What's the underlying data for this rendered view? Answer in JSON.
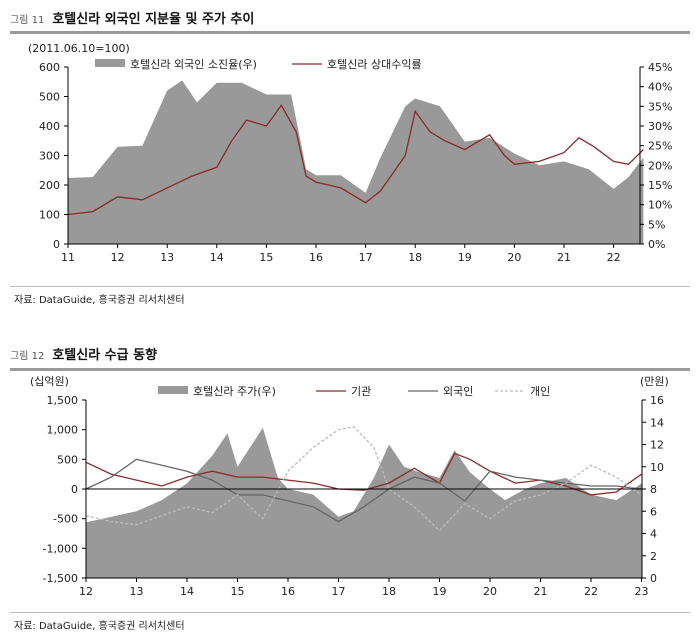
{
  "chart_data": [
    {
      "type": "area+line",
      "figure_no": "그림 11",
      "title": "호텔신라 외국인 지분율 및 주가 추이",
      "unit_left": "(2011.06.10=100)",
      "source": "자료: DataGuide, 흥국증권 리서치센터",
      "x_ticks": [
        "11",
        "12",
        "13",
        "14",
        "15",
        "16",
        "17",
        "18",
        "19",
        "20",
        "21",
        "22"
      ],
      "y_left_ticks": [
        "0",
        "100",
        "200",
        "300",
        "400",
        "500",
        "600"
      ],
      "ylim_left": [
        0,
        600
      ],
      "y_right_ticks": [
        "0%",
        "5%",
        "10%",
        "15%",
        "20%",
        "25%",
        "30%",
        "35%",
        "40%",
        "45%"
      ],
      "ylim_right": [
        0,
        45
      ],
      "series": [
        {
          "name": "호텔신라 외국인 소진율(우)",
          "type": "area",
          "axis": "right",
          "color": "#999999",
          "x": [
            2011.0,
            2011.5,
            2012.0,
            2012.5,
            2013.0,
            2013.3,
            2013.6,
            2014.0,
            2014.5,
            2015.0,
            2015.5,
            2015.8,
            2016.0,
            2016.5,
            2017.0,
            2017.3,
            2017.8,
            2018.0,
            2018.5,
            2019.0,
            2019.5,
            2020.0,
            2020.5,
            2021.0,
            2021.5,
            2022.0,
            2022.3,
            2022.6
          ],
          "values": [
            16.8,
            17,
            24.7,
            25,
            39,
            41.6,
            36,
            41,
            41,
            38,
            38,
            19,
            17.5,
            17.5,
            13,
            22,
            35,
            37,
            35,
            26,
            27,
            23,
            20,
            21,
            19,
            14,
            17,
            22
          ]
        },
        {
          "name": "호텔신라 상대수익률",
          "type": "line",
          "axis": "left",
          "color": "#8b2a2a",
          "x": [
            2011.0,
            2011.5,
            2012.0,
            2012.5,
            2013.0,
            2013.5,
            2014.0,
            2014.3,
            2014.6,
            2015.0,
            2015.3,
            2015.6,
            2015.8,
            2016.0,
            2016.5,
            2017.0,
            2017.3,
            2017.8,
            2018.0,
            2018.3,
            2018.6,
            2019.0,
            2019.5,
            2019.8,
            2020.0,
            2020.5,
            2021.0,
            2021.3,
            2021.6,
            2022.0,
            2022.3,
            2022.6
          ],
          "values": [
            100,
            110,
            160,
            150,
            190,
            230,
            260,
            350,
            420,
            400,
            470,
            380,
            230,
            210,
            190,
            140,
            180,
            300,
            450,
            380,
            350,
            320,
            370,
            300,
            270,
            280,
            310,
            360,
            330,
            280,
            270,
            320
          ]
        }
      ]
    },
    {
      "type": "area+line",
      "figure_no": "그림 12",
      "title": "호텔신라 수급 동향",
      "unit_left": "(십억원)",
      "unit_right": "(만원)",
      "source": "자료: DataGuide, 흥국증권 리서치센터",
      "x_ticks": [
        "12",
        "13",
        "14",
        "15",
        "16",
        "17",
        "18",
        "19",
        "20",
        "21",
        "22",
        "23"
      ],
      "y_left_ticks": [
        "-1,500",
        "-1,000",
        "-500",
        "0",
        "500",
        "1,000",
        "1,500"
      ],
      "ylim_left": [
        -1500,
        1500
      ],
      "y_right_ticks": [
        "0",
        "2",
        "4",
        "6",
        "8",
        "10",
        "12",
        "14",
        "16"
      ],
      "ylim_right": [
        0,
        16
      ],
      "series": [
        {
          "name": "호텔신라 주가(우)",
          "type": "area",
          "axis": "right",
          "color": "#999999",
          "x": [
            2012.0,
            2012.5,
            2013.0,
            2013.5,
            2014.0,
            2014.5,
            2014.8,
            2015.0,
            2015.5,
            2015.8,
            2016.0,
            2016.5,
            2017.0,
            2017.3,
            2017.7,
            2018.0,
            2018.3,
            2018.6,
            2019.0,
            2019.3,
            2019.6,
            2020.0,
            2020.3,
            2020.7,
            2021.0,
            2021.5,
            2022.0,
            2022.5,
            2023.0
          ],
          "values": [
            5,
            5.5,
            6,
            7,
            8.5,
            11,
            13,
            10,
            13.5,
            9,
            8,
            7.5,
            5.5,
            6,
            9,
            12,
            10,
            9.5,
            9,
            11.5,
            9.5,
            8,
            7,
            8,
            8.5,
            9,
            7.5,
            7,
            8.5
          ]
        },
        {
          "name": "기관",
          "type": "line",
          "axis": "left",
          "color": "#8b2a2a",
          "dash": "",
          "x": [
            2012.0,
            2012.5,
            2013.0,
            2013.5,
            2014.0,
            2014.5,
            2015.0,
            2015.5,
            2016.0,
            2016.5,
            2017.0,
            2017.5,
            2018.0,
            2018.5,
            2019.0,
            2019.3,
            2019.6,
            2020.0,
            2020.5,
            2021.0,
            2021.5,
            2022.0,
            2022.5,
            2023.0
          ],
          "values": [
            450,
            250,
            150,
            50,
            200,
            300,
            200,
            200,
            150,
            100,
            0,
            -20,
            100,
            350,
            100,
            600,
            500,
            300,
            100,
            150,
            50,
            -100,
            -50,
            250
          ]
        },
        {
          "name": "외국인",
          "type": "line",
          "axis": "left",
          "color": "#666666",
          "dash": "",
          "x": [
            2012.0,
            2012.5,
            2013.0,
            2013.5,
            2014.0,
            2014.5,
            2015.0,
            2015.5,
            2016.0,
            2016.5,
            2017.0,
            2017.5,
            2018.0,
            2018.5,
            2019.0,
            2019.5,
            2020.0,
            2020.5,
            2021.0,
            2021.5,
            2022.0,
            2022.5,
            2023.0
          ],
          "values": [
            0,
            200,
            500,
            400,
            300,
            150,
            -100,
            -100,
            -200,
            -300,
            -550,
            -300,
            0,
            200,
            100,
            -200,
            300,
            200,
            150,
            100,
            50,
            50,
            0
          ]
        },
        {
          "name": "개인",
          "type": "line",
          "axis": "left",
          "color": "#bbbbbb",
          "dash": "3,2",
          "x": [
            2012.0,
            2012.5,
            2013.0,
            2013.5,
            2014.0,
            2014.5,
            2015.0,
            2015.5,
            2016.0,
            2016.5,
            2017.0,
            2017.3,
            2017.7,
            2018.0,
            2018.5,
            2019.0,
            2019.5,
            2020.0,
            2020.5,
            2021.0,
            2021.5,
            2022.0,
            2022.5,
            2023.0
          ],
          "values": [
            -450,
            -550,
            -600,
            -450,
            -300,
            -400,
            -100,
            -500,
            300,
            700,
            1000,
            1050,
            700,
            0,
            -300,
            -700,
            -250,
            -500,
            -200,
            -100,
            100,
            400,
            200,
            -100
          ]
        }
      ]
    }
  ]
}
